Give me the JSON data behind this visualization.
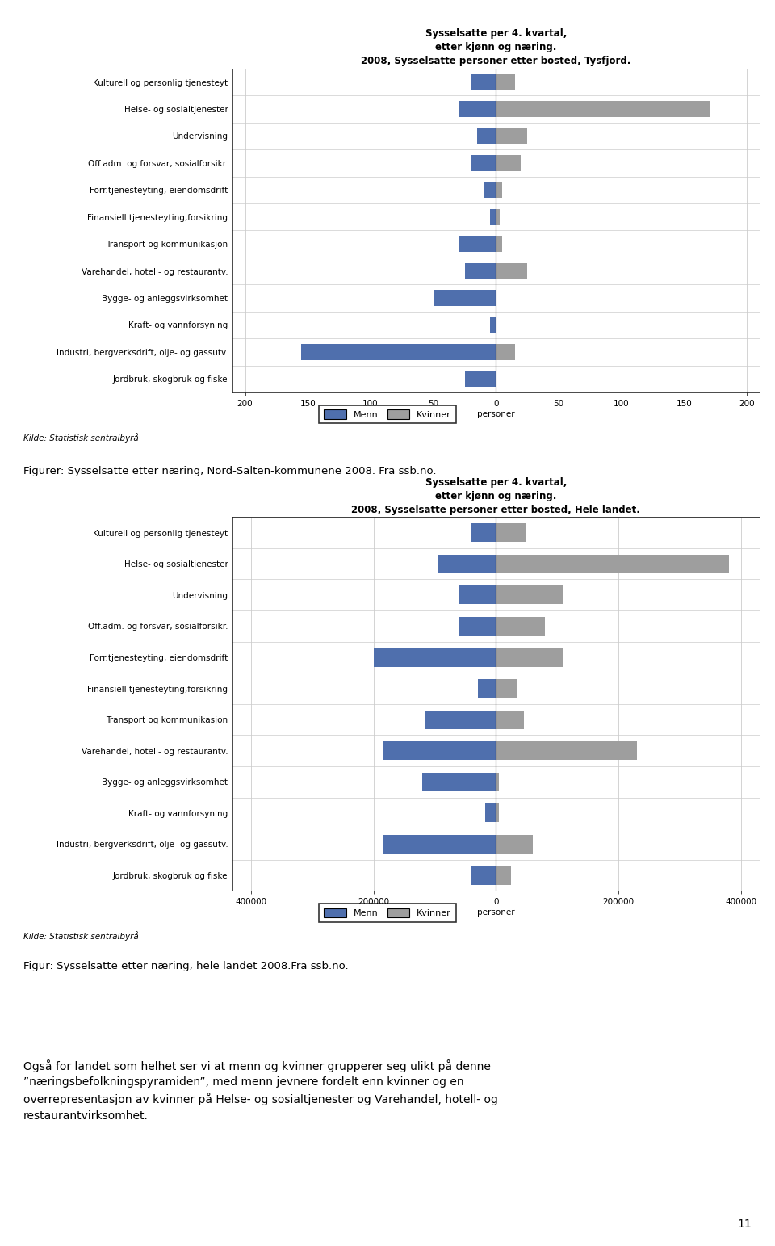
{
  "chart1": {
    "title": "Sysselsatte per 4. kvartal,\netter kjønn og næring.\n2008, Sysselsatte personer etter bosted, Tysfjord.",
    "categories": [
      "Kulturell og personlig tjenesteyt",
      "Helse- og sosialtjenester",
      "Undervisning",
      "Off.adm. og forsvar, sosialforsikr.",
      "Forr.tjenesteyting, eiendomsdrift",
      "Finansiell tjenesteyting,forsikring",
      "Transport og kommunikasjon",
      "Varehandel, hotell- og restaurantv.",
      "Bygge- og anleggsvirksomhet",
      "Kraft- og vannforsyning",
      "Industri, bergverksdrift, olje- og gassutv.",
      "Jordbruk, skogbruk og fiske"
    ],
    "menn": [
      20,
      30,
      15,
      20,
      10,
      5,
      30,
      25,
      50,
      5,
      155,
      25
    ],
    "kvinner": [
      15,
      170,
      25,
      20,
      5,
      3,
      5,
      25,
      0,
      0,
      15,
      0
    ],
    "xlim": 210,
    "xlabel": "personer"
  },
  "chart2": {
    "title": "Sysselsatte per 4. kvartal,\netter kjønn og næring.\n2008, Sysselsatte personer etter bosted, Hele landet.",
    "categories": [
      "Kulturell og personlig tjenesteyt",
      "Helse- og sosialtjenester",
      "Undervisning",
      "Off.adm. og forsvar, sosialforsikr.",
      "Forr.tjenesteyting, eiendomsdrift",
      "Finansiell tjenesteyting,forsikring",
      "Transport og kommunikasjon",
      "Varehandel, hotell- og restaurantv.",
      "Bygge- og anleggsvirksomhet",
      "Kraft- og vannforsyning",
      "Industri, bergverksdrift, olje- og gassutv.",
      "Jordbruk, skogbruk og fiske"
    ],
    "menn": [
      40000,
      95000,
      60000,
      60000,
      200000,
      30000,
      115000,
      185000,
      120000,
      18000,
      185000,
      40000
    ],
    "kvinner": [
      50000,
      380000,
      110000,
      80000,
      110000,
      35000,
      45000,
      230000,
      5000,
      5000,
      60000,
      25000
    ],
    "xlim": 430000,
    "xlabel": "personer"
  },
  "menn_color": "#4f6fad",
  "kvinner_color": "#9e9e9e",
  "grid_color": "#cccccc",
  "text1": "Figurer: Sysselsatte etter næring, Nord-Salten-kommunene 2008. Fra ssb.no.",
  "text2": "Figur: Sysselsatte etter næring, hele landet 2008.Fra ssb.no.",
  "kilde": "Kilde: Statistisk sentralbyrå",
  "bottom_text": "Også for landet som helhet ser vi at menn og kvinner grupperer seg ulikt på denne\n”næringsbefolkningspyramiden”, med menn jevnere fordelt enn kvinner og en\noverrepresentasjon av kvinner på Helse- og sosialtjenester og Varehandel, hotell- og\nrestaurantvirksomhet.",
  "page_number": "11"
}
